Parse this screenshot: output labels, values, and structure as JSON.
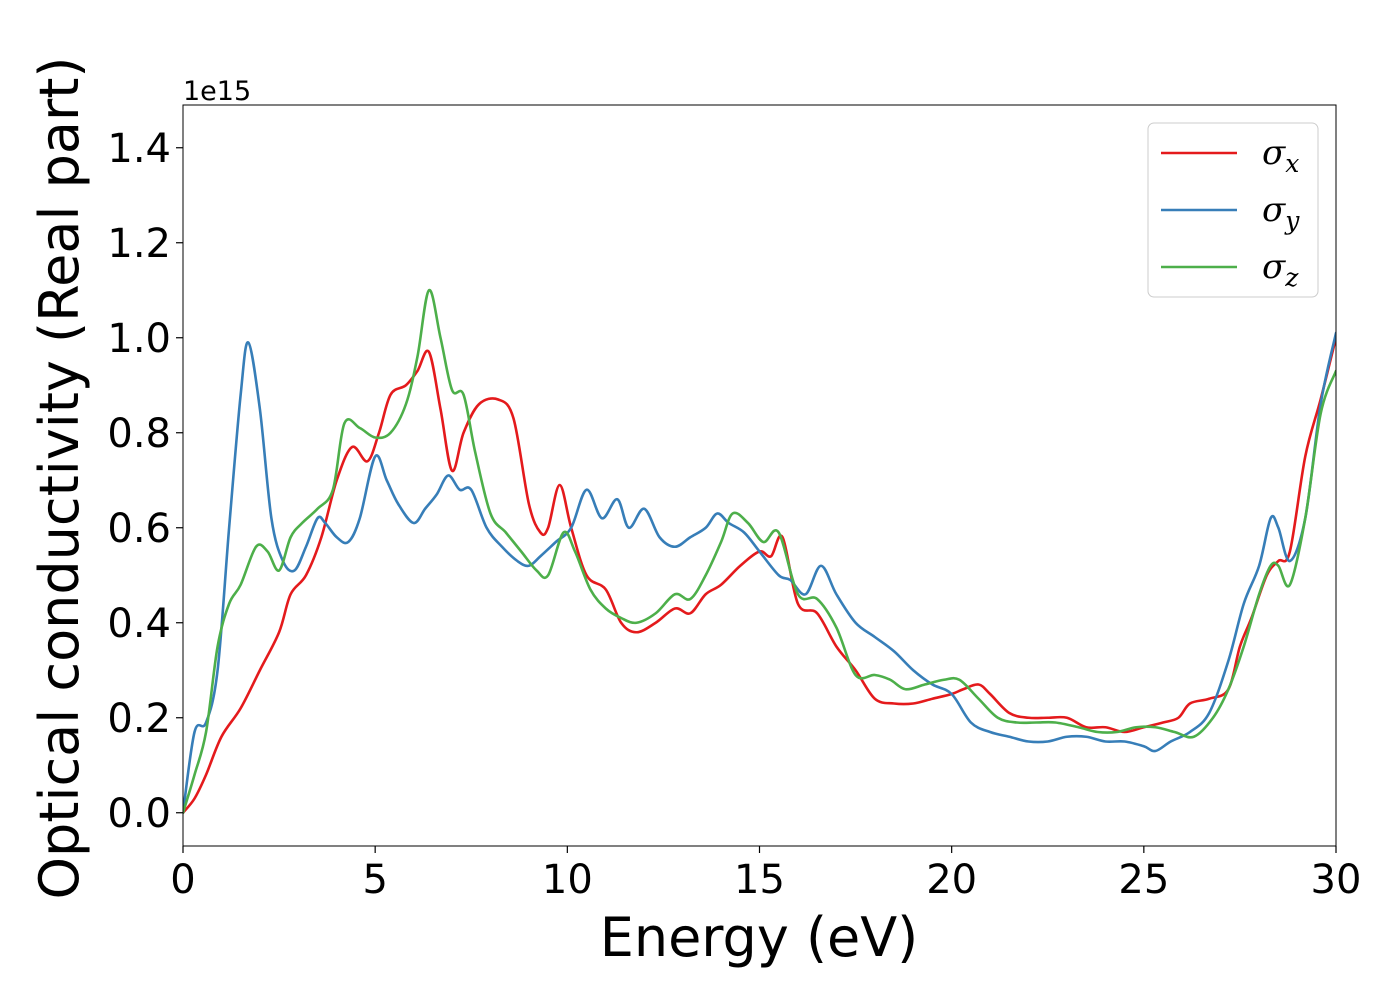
{
  "chart_data": {
    "type": "line",
    "title": "",
    "xlabel": "Energy (eV)",
    "ylabel": "Optical conductivity (Real part)",
    "y_offset_text": "1e15",
    "xlim": [
      0,
      30
    ],
    "ylim": [
      -0.07,
      1.49
    ],
    "xticks": [
      0,
      5,
      10,
      15,
      20,
      25,
      30
    ],
    "xtick_labels": [
      "0",
      "5",
      "10",
      "15",
      "20",
      "25",
      "30"
    ],
    "yticks": [
      0.0,
      0.2,
      0.4,
      0.6,
      0.8,
      1.0,
      1.2,
      1.4
    ],
    "ytick_labels": [
      "0.0",
      "0.2",
      "0.4",
      "0.6",
      "0.8",
      "1.0",
      "1.2",
      "1.4"
    ],
    "grid": false,
    "legend_position": "top-right",
    "series": [
      {
        "name": "σx",
        "symbol": "σ",
        "subscript": "x",
        "color": "#e41a1c",
        "points": [
          [
            0,
            0
          ],
          [
            0.3,
            0.03
          ],
          [
            0.6,
            0.08
          ],
          [
            1,
            0.16
          ],
          [
            1.5,
            0.22
          ],
          [
            2,
            0.3
          ],
          [
            2.5,
            0.38
          ],
          [
            2.8,
            0.46
          ],
          [
            3.2,
            0.5
          ],
          [
            3.6,
            0.58
          ],
          [
            4,
            0.7
          ],
          [
            4.4,
            0.77
          ],
          [
            4.8,
            0.74
          ],
          [
            5.1,
            0.8
          ],
          [
            5.4,
            0.88
          ],
          [
            5.8,
            0.9
          ],
          [
            6.1,
            0.93
          ],
          [
            6.4,
            0.97
          ],
          [
            6.7,
            0.85
          ],
          [
            7,
            0.72
          ],
          [
            7.3,
            0.8
          ],
          [
            7.7,
            0.86
          ],
          [
            8.2,
            0.87
          ],
          [
            8.6,
            0.83
          ],
          [
            9,
            0.65
          ],
          [
            9.3,
            0.59
          ],
          [
            9.5,
            0.6
          ],
          [
            9.8,
            0.69
          ],
          [
            10.1,
            0.6
          ],
          [
            10.5,
            0.5
          ],
          [
            11,
            0.47
          ],
          [
            11.4,
            0.4
          ],
          [
            11.8,
            0.38
          ],
          [
            12.3,
            0.4
          ],
          [
            12.8,
            0.43
          ],
          [
            13.2,
            0.42
          ],
          [
            13.6,
            0.46
          ],
          [
            14,
            0.48
          ],
          [
            14.5,
            0.52
          ],
          [
            15,
            0.55
          ],
          [
            15.3,
            0.54
          ],
          [
            15.6,
            0.58
          ],
          [
            16,
            0.44
          ],
          [
            16.5,
            0.42
          ],
          [
            17,
            0.35
          ],
          [
            17.5,
            0.3
          ],
          [
            18,
            0.24
          ],
          [
            18.5,
            0.23
          ],
          [
            19,
            0.23
          ],
          [
            19.5,
            0.24
          ],
          [
            20,
            0.25
          ],
          [
            20.3,
            0.26
          ],
          [
            20.7,
            0.27
          ],
          [
            21,
            0.25
          ],
          [
            21.5,
            0.21
          ],
          [
            22,
            0.2
          ],
          [
            22.5,
            0.2
          ],
          [
            23,
            0.2
          ],
          [
            23.5,
            0.18
          ],
          [
            24,
            0.18
          ],
          [
            24.5,
            0.17
          ],
          [
            25,
            0.18
          ],
          [
            25.5,
            0.19
          ],
          [
            25.9,
            0.2
          ],
          [
            26.2,
            0.23
          ],
          [
            26.7,
            0.24
          ],
          [
            27.2,
            0.26
          ],
          [
            27.5,
            0.35
          ],
          [
            27.8,
            0.41
          ],
          [
            28.2,
            0.5
          ],
          [
            28.5,
            0.53
          ],
          [
            28.8,
            0.55
          ],
          [
            29.2,
            0.75
          ],
          [
            29.6,
            0.87
          ],
          [
            30,
            1.0
          ]
        ]
      },
      {
        "name": "σy",
        "symbol": "σ",
        "subscript": "y",
        "color": "#377eb8",
        "points": [
          [
            0,
            0
          ],
          [
            0.3,
            0.17
          ],
          [
            0.6,
            0.19
          ],
          [
            0.9,
            0.3
          ],
          [
            1.2,
            0.6
          ],
          [
            1.5,
            0.88
          ],
          [
            1.7,
            0.99
          ],
          [
            2,
            0.85
          ],
          [
            2.3,
            0.62
          ],
          [
            2.6,
            0.53
          ],
          [
            2.9,
            0.51
          ],
          [
            3.2,
            0.56
          ],
          [
            3.5,
            0.62
          ],
          [
            3.7,
            0.61
          ],
          [
            4,
            0.58
          ],
          [
            4.3,
            0.57
          ],
          [
            4.6,
            0.62
          ],
          [
            5,
            0.75
          ],
          [
            5.3,
            0.7
          ],
          [
            5.6,
            0.65
          ],
          [
            6,
            0.61
          ],
          [
            6.3,
            0.64
          ],
          [
            6.6,
            0.67
          ],
          [
            6.9,
            0.71
          ],
          [
            7.2,
            0.68
          ],
          [
            7.5,
            0.68
          ],
          [
            7.9,
            0.6
          ],
          [
            8.3,
            0.56
          ],
          [
            8.7,
            0.53
          ],
          [
            9,
            0.52
          ],
          [
            9.3,
            0.54
          ],
          [
            9.7,
            0.57
          ],
          [
            10.1,
            0.6
          ],
          [
            10.5,
            0.68
          ],
          [
            10.9,
            0.62
          ],
          [
            11.3,
            0.66
          ],
          [
            11.6,
            0.6
          ],
          [
            12,
            0.64
          ],
          [
            12.4,
            0.58
          ],
          [
            12.8,
            0.56
          ],
          [
            13.2,
            0.58
          ],
          [
            13.6,
            0.6
          ],
          [
            13.9,
            0.63
          ],
          [
            14.2,
            0.61
          ],
          [
            14.6,
            0.59
          ],
          [
            15,
            0.55
          ],
          [
            15.5,
            0.5
          ],
          [
            15.8,
            0.49
          ],
          [
            16.2,
            0.46
          ],
          [
            16.6,
            0.52
          ],
          [
            17,
            0.46
          ],
          [
            17.5,
            0.4
          ],
          [
            18,
            0.37
          ],
          [
            18.5,
            0.34
          ],
          [
            19,
            0.3
          ],
          [
            19.5,
            0.27
          ],
          [
            20,
            0.25
          ],
          [
            20.5,
            0.19
          ],
          [
            21,
            0.17
          ],
          [
            21.5,
            0.16
          ],
          [
            22,
            0.15
          ],
          [
            22.5,
            0.15
          ],
          [
            23,
            0.16
          ],
          [
            23.5,
            0.16
          ],
          [
            24,
            0.15
          ],
          [
            24.5,
            0.15
          ],
          [
            25,
            0.14
          ],
          [
            25.3,
            0.13
          ],
          [
            25.7,
            0.15
          ],
          [
            26.2,
            0.17
          ],
          [
            26.7,
            0.21
          ],
          [
            27.2,
            0.32
          ],
          [
            27.6,
            0.44
          ],
          [
            28,
            0.52
          ],
          [
            28.3,
            0.62
          ],
          [
            28.5,
            0.6
          ],
          [
            28.8,
            0.53
          ],
          [
            29.2,
            0.62
          ],
          [
            29.6,
            0.86
          ],
          [
            30,
            1.01
          ]
        ]
      },
      {
        "name": "σz",
        "symbol": "σ",
        "subscript": "z",
        "color": "#4daf4a",
        "points": [
          [
            0,
            0
          ],
          [
            0.3,
            0.08
          ],
          [
            0.6,
            0.17
          ],
          [
            0.9,
            0.35
          ],
          [
            1.2,
            0.44
          ],
          [
            1.5,
            0.48
          ],
          [
            1.9,
            0.56
          ],
          [
            2.2,
            0.55
          ],
          [
            2.5,
            0.51
          ],
          [
            2.8,
            0.58
          ],
          [
            3.1,
            0.61
          ],
          [
            3.5,
            0.64
          ],
          [
            3.9,
            0.68
          ],
          [
            4.2,
            0.82
          ],
          [
            4.6,
            0.81
          ],
          [
            5,
            0.79
          ],
          [
            5.4,
            0.8
          ],
          [
            5.8,
            0.86
          ],
          [
            6.1,
            0.96
          ],
          [
            6.4,
            1.1
          ],
          [
            6.7,
            1.0
          ],
          [
            7,
            0.89
          ],
          [
            7.3,
            0.88
          ],
          [
            7.6,
            0.76
          ],
          [
            8,
            0.63
          ],
          [
            8.4,
            0.59
          ],
          [
            8.8,
            0.55
          ],
          [
            9.2,
            0.51
          ],
          [
            9.5,
            0.5
          ],
          [
            9.9,
            0.59
          ],
          [
            10.2,
            0.55
          ],
          [
            10.6,
            0.47
          ],
          [
            11,
            0.43
          ],
          [
            11.4,
            0.41
          ],
          [
            11.8,
            0.4
          ],
          [
            12.3,
            0.42
          ],
          [
            12.8,
            0.46
          ],
          [
            13.2,
            0.45
          ],
          [
            13.6,
            0.5
          ],
          [
            14,
            0.57
          ],
          [
            14.3,
            0.63
          ],
          [
            14.7,
            0.61
          ],
          [
            15.1,
            0.57
          ],
          [
            15.5,
            0.59
          ],
          [
            16,
            0.46
          ],
          [
            16.5,
            0.45
          ],
          [
            17,
            0.39
          ],
          [
            17.5,
            0.29
          ],
          [
            18,
            0.29
          ],
          [
            18.4,
            0.28
          ],
          [
            18.8,
            0.26
          ],
          [
            19.3,
            0.27
          ],
          [
            19.8,
            0.28
          ],
          [
            20.2,
            0.28
          ],
          [
            20.7,
            0.24
          ],
          [
            21.2,
            0.2
          ],
          [
            21.7,
            0.19
          ],
          [
            22.2,
            0.19
          ],
          [
            22.7,
            0.19
          ],
          [
            23.3,
            0.18
          ],
          [
            23.8,
            0.17
          ],
          [
            24.3,
            0.17
          ],
          [
            24.8,
            0.18
          ],
          [
            25.3,
            0.18
          ],
          [
            25.8,
            0.17
          ],
          [
            26.3,
            0.16
          ],
          [
            26.8,
            0.2
          ],
          [
            27.2,
            0.26
          ],
          [
            27.6,
            0.35
          ],
          [
            28,
            0.46
          ],
          [
            28.3,
            0.52
          ],
          [
            28.5,
            0.52
          ],
          [
            28.8,
            0.48
          ],
          [
            29.2,
            0.62
          ],
          [
            29.6,
            0.84
          ],
          [
            30,
            0.93
          ]
        ]
      }
    ]
  }
}
